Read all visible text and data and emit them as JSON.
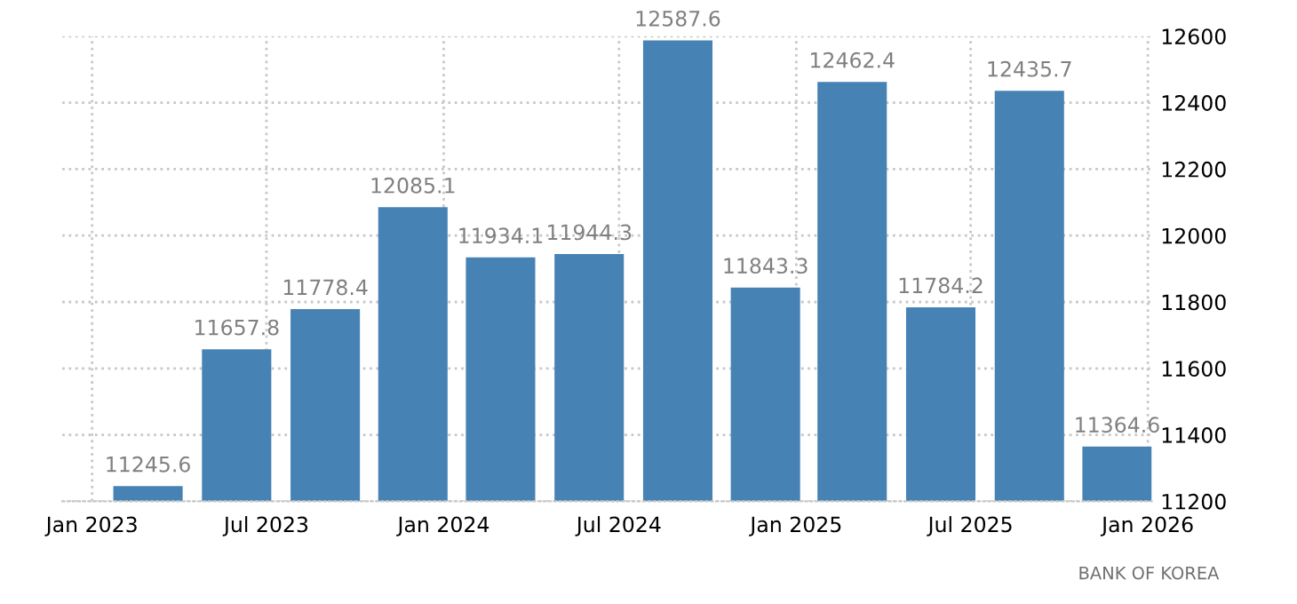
{
  "chart_data": {
    "type": "bar",
    "x": [
      "2023-02-28",
      "2023-05-31",
      "2023-08-31",
      "2023-11-30",
      "2024-02-29",
      "2024-05-31",
      "2024-08-31",
      "2024-11-30",
      "2025-02-28",
      "2025-05-31",
      "2025-08-31",
      "2025-11-30"
    ],
    "values": [
      11245.6,
      11657.8,
      11778.4,
      12085.1,
      11934.1,
      11944.3,
      12587.6,
      11843.3,
      12462.4,
      11784.2,
      12435.7,
      11364.6
    ],
    "color": "#4682b4",
    "data_labels": true,
    "xlim": [
      "2022-12-01",
      "2026-01-05"
    ],
    "xticks": [
      {
        "value": "2023-01-01",
        "label": "Jan 2023"
      },
      {
        "value": "2023-07-01",
        "label": "Jul 2023"
      },
      {
        "value": "2024-01-01",
        "label": "Jan 2024"
      },
      {
        "value": "2024-07-01",
        "label": "Jul 2024"
      },
      {
        "value": "2025-01-01",
        "label": "Jan 2025"
      },
      {
        "value": "2025-07-01",
        "label": "Jul 2025"
      },
      {
        "value": "2026-01-01",
        "label": "Jan 2026"
      }
    ],
    "ylim": [
      11200,
      12600
    ],
    "yticks": [
      11200,
      11400,
      11600,
      11800,
      12000,
      12200,
      12400,
      12600
    ],
    "grid": true,
    "annotations": [
      "BANK OF KOREA"
    ]
  }
}
